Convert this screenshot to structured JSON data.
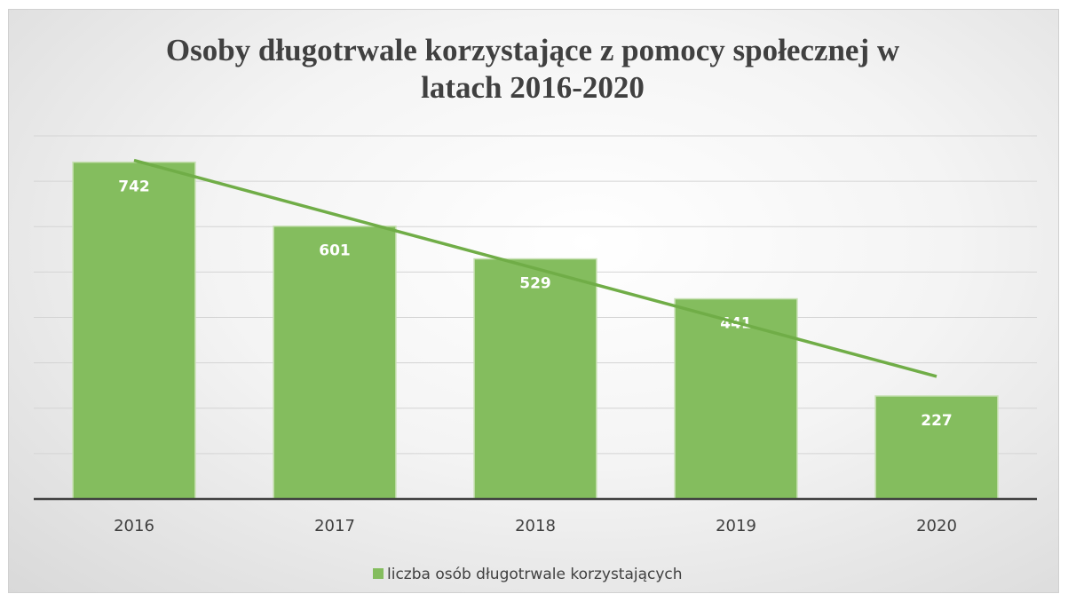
{
  "chart_data": {
    "type": "bar",
    "title": "Osoby długotrwale korzystające z pomocy społecznej w latach 2016-2020",
    "categories": [
      "2016",
      "2017",
      "2018",
      "2019",
      "2020"
    ],
    "series": [
      {
        "name": "liczba osób długotrwale korzystających",
        "color": "#84bd5e",
        "values": [
          742,
          601,
          529,
          441,
          227
        ]
      }
    ],
    "trendline": {
      "type": "linear",
      "color": "#70ad47"
    },
    "ylim": [
      0,
      800
    ],
    "yticks": [
      0,
      100,
      200,
      300,
      400,
      500,
      600,
      700,
      800
    ],
    "grid": true,
    "legend": "bottom"
  }
}
